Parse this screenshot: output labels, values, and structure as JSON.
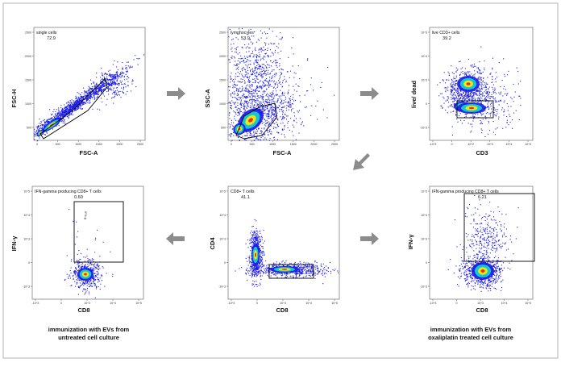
{
  "plots": [
    {
      "id": "p1",
      "xlabel": "FSC-A",
      "ylabel": "FSC-H",
      "gate_label": "single cells",
      "gate_value": "72.9",
      "y_ticks": [
        "2500",
        "2000",
        "1500",
        "1000",
        "500"
      ],
      "x_ticks": [
        "0",
        "500",
        "1000",
        "1500",
        "2000",
        "2500"
      ]
    },
    {
      "id": "p2",
      "xlabel": "FSC-A",
      "ylabel": "SSC-A",
      "gate_label": "lymphocytes",
      "gate_value": "53.9",
      "y_ticks": [
        "2500",
        "2000",
        "1500",
        "1000",
        "500"
      ],
      "x_ticks": [
        "0",
        "500",
        "1000",
        "1500",
        "2000",
        "2500"
      ]
    },
    {
      "id": "p3",
      "xlabel": "CD3",
      "ylabel": "live/ dead",
      "gate_label": "live CD3+ cells",
      "gate_value": "39.2",
      "y_ticks": [
        "10^5",
        "10^4",
        "10^3",
        "0",
        "-10^3"
      ],
      "x_ticks": [
        "-10^2",
        "0",
        "10^2",
        "10^3",
        "10^4",
        "10^5"
      ]
    },
    {
      "id": "p4",
      "xlabel": "CD8",
      "ylabel": "IFN-γ",
      "gate_label": "IFN-gamma producing CD8+ T cells",
      "gate_value": "0.60",
      "inner_label": "IFN-g",
      "y_ticks": [
        "10^5",
        "10^4",
        "10^3",
        "0",
        "-10^3"
      ],
      "x_ticks": [
        "-10^3",
        "0",
        "10^3",
        "10^4",
        "10^5"
      ]
    },
    {
      "id": "p5",
      "xlabel": "CD8",
      "ylabel": "CD4",
      "gate_label": "CD8+ T cells",
      "gate_value": "41.1",
      "y_ticks": [
        "10^5",
        "10^4",
        "10^3",
        "0",
        "-10^3"
      ],
      "x_ticks": [
        "-10^3",
        "0",
        "10^3",
        "10^4",
        "10^5"
      ]
    },
    {
      "id": "p6",
      "xlabel": "CD8",
      "ylabel": "IFN-γ",
      "gate_label": "IFN-gamma producing CD8+ T cells",
      "gate_value": "6.21",
      "y_ticks": [
        "10^5",
        "10^4",
        "10^3",
        "0",
        "-10^3"
      ],
      "x_ticks": [
        "-10^3",
        "0",
        "10^3",
        "10^4",
        "10^5"
      ]
    }
  ],
  "captions": {
    "left": [
      "immunization with EVs from",
      "untreated cell culture"
    ],
    "right": [
      "immunization with EVs from",
      "oxaliplatin treated cell culture"
    ]
  },
  "colors": {
    "frame": "#7f7f7f",
    "arrow": "#8c8c8c",
    "density_low": "#1a1ae6",
    "density_mid": "#14c8d2",
    "density_high": "#f0e614",
    "density_peak": "#e62814"
  }
}
